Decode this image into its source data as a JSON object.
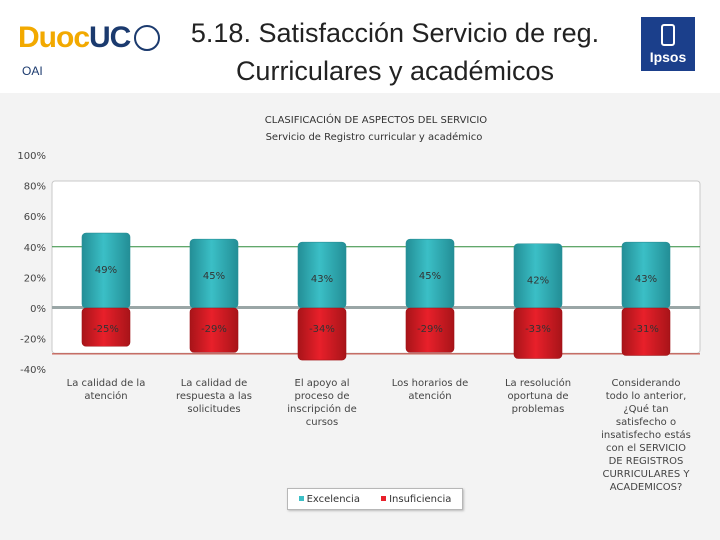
{
  "header": {
    "logo_brand": "Duoc",
    "logo_brand_2": "UC",
    "left_tag": "OAI",
    "title_line1": "5.18. Satisfacción Servicio de reg.",
    "title_line2": "Curriculares y académicos",
    "partner_logo": "Ipsos"
  },
  "colors": {
    "excellence": "#3bbfc6",
    "insufficiency": "#e8202a",
    "excellence_line": "#2e8b3a",
    "insufficiency_line": "#c0392b"
  },
  "chart_data": {
    "type": "bar",
    "title": "CLASIFICACIÓN DE ASPECTOS DEL SERVICIO",
    "subtitle": "Servicio de Registro curricular y académico",
    "categories": [
      "La calidad de la atención",
      "La calidad de respuesta a las solicitudes",
      "El apoyo al proceso de inscripción de cursos",
      "Los horarios de atención",
      "La resolución oportuna de problemas",
      "Considerando todo lo anterior, ¿Qué tan satisfecho o insatisfecho estás con el SERVICIO DE REGISTROS CURRICULARES Y ACADEMICOS?"
    ],
    "series": [
      {
        "name": "Excelencia",
        "values": [
          49,
          45,
          43,
          45,
          42,
          43
        ],
        "labels": [
          "49%",
          "45%",
          "43%",
          "45%",
          "42%",
          "43%"
        ]
      },
      {
        "name": "Insuficiencia",
        "values": [
          -25,
          -29,
          -34,
          -29,
          -33,
          -31
        ],
        "labels": [
          "-25%",
          "-29%",
          "-34%",
          "-29%",
          "-33%",
          "-31%"
        ]
      }
    ],
    "ylim": [
      -40,
      100
    ],
    "yticks": [
      100,
      80,
      60,
      40,
      20,
      0,
      -20,
      -40
    ],
    "ytick_labels": [
      "100%",
      "80%",
      "60%",
      "40%",
      "20%",
      "0%",
      "-20%",
      "-40%"
    ],
    "reference_lines": [
      40,
      -30
    ],
    "legend_position": "bottom-center",
    "grid": false
  }
}
